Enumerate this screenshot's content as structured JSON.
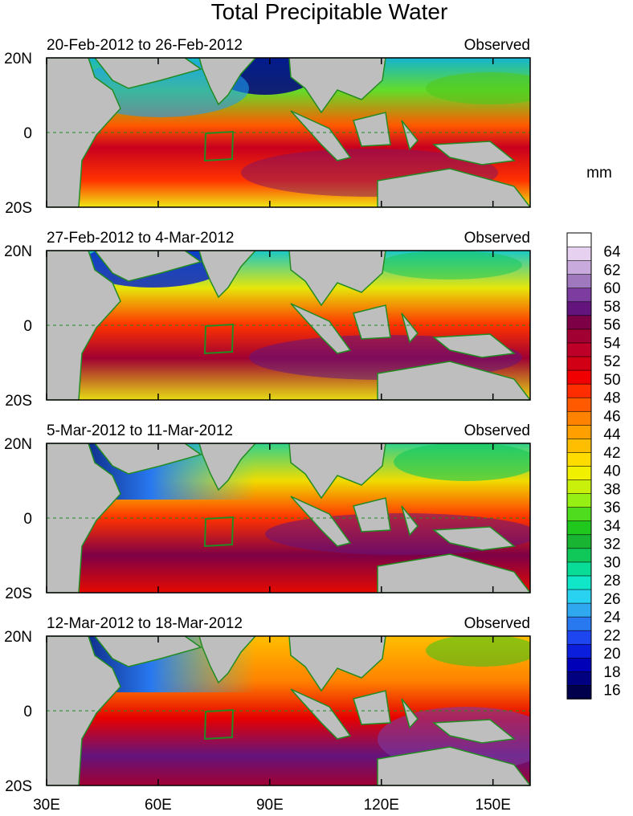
{
  "chart_data": {
    "type": "heatmap",
    "title": "Total Precipitable Water",
    "units": "mm",
    "panel_tag": "Observed",
    "panels": [
      {
        "period": "20-Feb-2012 to 26-Feb-2012",
        "dry_north_min": 16,
        "moist_core_max": 58
      },
      {
        "period": "27-Feb-2012 to 4-Mar-2012",
        "dry_north_min": 20,
        "moist_core_max": 60
      },
      {
        "period": "5-Mar-2012 to 11-Mar-2012",
        "dry_north_min": 15,
        "moist_core_max": 60
      },
      {
        "period": "12-Mar-2012 to 18-Mar-2012",
        "dry_north_min": 15,
        "moist_core_max": 62
      }
    ],
    "x_ticks": [
      "30E",
      "60E",
      "90E",
      "120E",
      "150E"
    ],
    "x_tick_values": [
      30,
      60,
      90,
      120,
      150
    ],
    "xlim": [
      30,
      160
    ],
    "y_ticks": [
      "20N",
      "0",
      "20S"
    ],
    "y_tick_values": [
      20,
      0,
      -20
    ],
    "ylim": [
      -20,
      20
    ],
    "colorbar": {
      "labels": [
        "16",
        "18",
        "20",
        "22",
        "24",
        "26",
        "28",
        "30",
        "32",
        "34",
        "36",
        "38",
        "40",
        "42",
        "44",
        "46",
        "48",
        "50",
        "52",
        "54",
        "56",
        "58",
        "60",
        "62",
        "64"
      ],
      "range": [
        15,
        66
      ],
      "colors": [
        "#00004c",
        "#000080",
        "#0000b8",
        "#0a1edc",
        "#1e46f0",
        "#2878f0",
        "#30a8f0",
        "#28d2f0",
        "#10e6c8",
        "#08dc96",
        "#10c85a",
        "#18b432",
        "#20c81e",
        "#50dc1e",
        "#96f014",
        "#c8f00a",
        "#f0f000",
        "#ffdc00",
        "#ffbe00",
        "#ffa000",
        "#ff8200",
        "#ff5a00",
        "#ff2d00",
        "#f00000",
        "#d20014",
        "#be0028",
        "#a00032",
        "#7d0046",
        "#64147d",
        "#7d3ca0",
        "#a078be",
        "#c8aadc",
        "#e6d2f0",
        "#ffffff"
      ]
    },
    "guides": {
      "equator": 0,
      "box": {
        "lon": [
          72,
          80
        ],
        "lat": [
          -8,
          0
        ]
      }
    }
  }
}
